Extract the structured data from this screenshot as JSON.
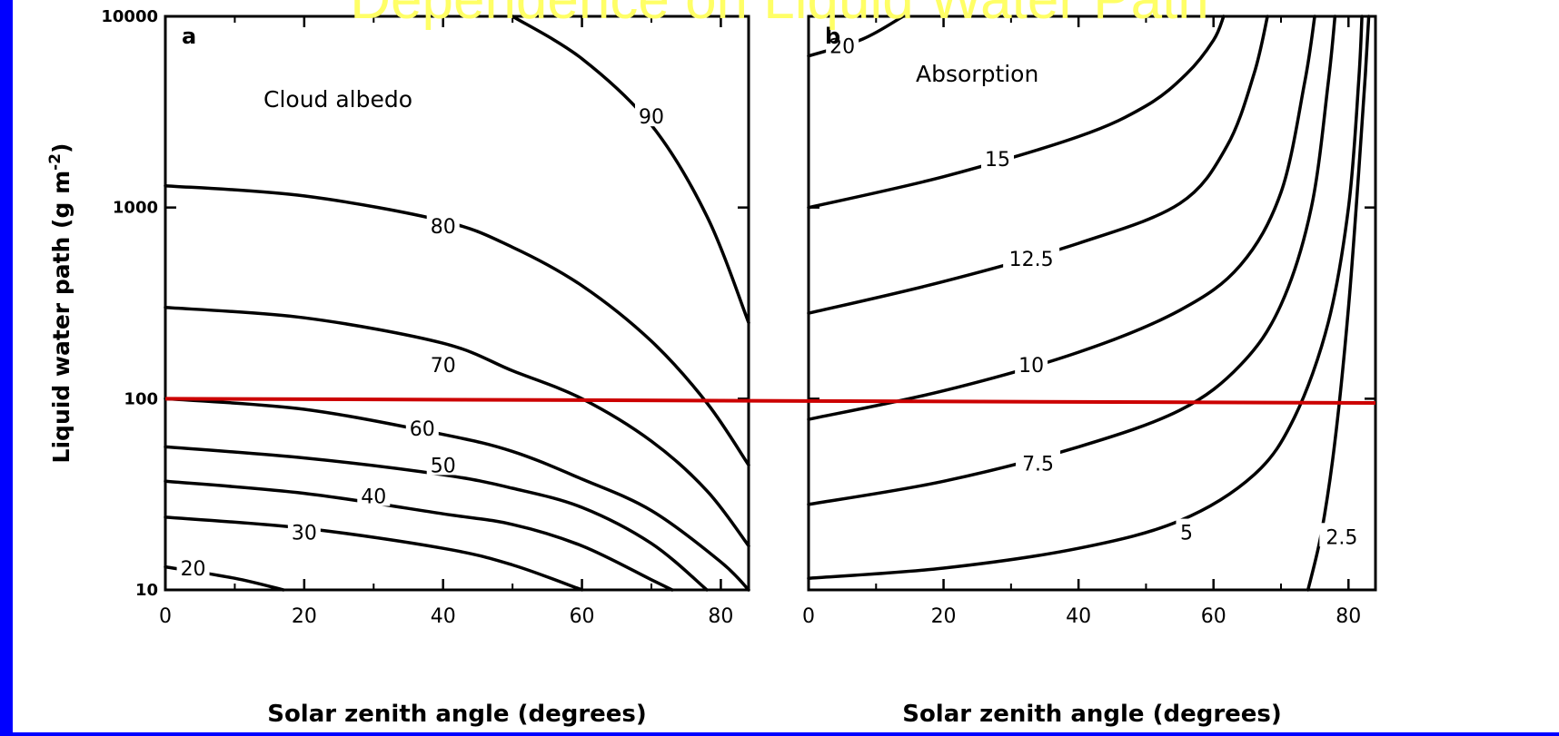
{
  "slide": {
    "title": "Dependence on Liquid Water Path",
    "background_color": "#0000ff",
    "title_color": "#ffff66",
    "highlight_line_color": "#cc0000"
  },
  "chart_data": [
    {
      "type": "contour",
      "panel_letter": "a",
      "title": "Cloud albedo",
      "xlabel": "Solar zenith angle (degrees)",
      "ylabel": "Liquid water path (g m^-2)",
      "x_scale": "linear",
      "y_scale": "log",
      "xlim": [
        0,
        84
      ],
      "ylim": [
        10,
        10000
      ],
      "x_ticks": [
        "0",
        "20",
        "40",
        "60",
        "80"
      ],
      "y_ticks": [
        "10",
        "100",
        "1000",
        "10000"
      ],
      "reference_line": {
        "y_start": 100,
        "y_end": 100
      },
      "contours": [
        {
          "label": "90",
          "x": [
            50,
            60,
            70,
            78,
            84
          ],
          "y": [
            10000,
            6000,
            2700,
            900,
            250
          ],
          "label_at": [
            70,
            3000
          ]
        },
        {
          "label": "80",
          "x": [
            0,
            20,
            40,
            50,
            60,
            70,
            78,
            84
          ],
          "y": [
            1300,
            1150,
            850,
            620,
            390,
            200,
            95,
            45
          ],
          "label_at": [
            40,
            800
          ]
        },
        {
          "label": "70",
          "x": [
            0,
            20,
            40,
            50,
            60,
            70,
            78,
            84
          ],
          "y": [
            300,
            265,
            195,
            140,
            100,
            60,
            33,
            17
          ],
          "label_at": [
            40,
            150
          ]
        },
        {
          "label": "60",
          "x": [
            0,
            20,
            40,
            50,
            60,
            70,
            80,
            84
          ],
          "y": [
            100,
            88,
            65,
            53,
            38,
            26,
            14,
            10
          ],
          "label_at": [
            37,
            70
          ]
        },
        {
          "label": "50",
          "x": [
            0,
            20,
            40,
            50,
            60,
            70,
            78
          ],
          "y": [
            56,
            49,
            40,
            34,
            27,
            17.5,
            10
          ],
          "label_at": [
            40,
            45
          ]
        },
        {
          "label": "40",
          "x": [
            0,
            20,
            40,
            50,
            60,
            70,
            73
          ],
          "y": [
            37,
            32,
            25,
            22,
            17,
            11.3,
            10
          ],
          "label_at": [
            30,
            31
          ]
        },
        {
          "label": "30",
          "x": [
            0,
            20,
            40,
            50,
            60
          ],
          "y": [
            24,
            21,
            16.5,
            13.5,
            10
          ],
          "label_at": [
            20,
            20
          ]
        },
        {
          "label": "20",
          "x": [
            0,
            10,
            17
          ],
          "y": [
            13.2,
            11.5,
            10
          ],
          "label_at": [
            4,
            13
          ]
        }
      ]
    },
    {
      "type": "contour",
      "panel_letter": "b",
      "title": "Absorption",
      "xlabel": "Solar zenith angle (degrees)",
      "ylabel": "",
      "x_scale": "linear",
      "y_scale": "log",
      "xlim": [
        0,
        84
      ],
      "ylim": [
        10,
        10000
      ],
      "x_ticks": [
        "0",
        "20",
        "40",
        "60",
        "80"
      ],
      "y_ticks": [],
      "reference_line": {
        "y_start": 100,
        "y_end": 95
      },
      "contours": [
        {
          "label": "20",
          "x": [
            0,
            8,
            14
          ],
          "y": [
            6200,
            7600,
            10000
          ],
          "label_at": [
            5,
            7000
          ]
        },
        {
          "label": "15",
          "x": [
            0,
            20,
            40,
            50,
            56,
            60,
            61.5
          ],
          "y": [
            1000,
            1450,
            2350,
            3400,
            5000,
            7500,
            10000
          ],
          "label_at": [
            28,
            1800
          ]
        },
        {
          "label": "12.5",
          "x": [
            0,
            20,
            40,
            55,
            62,
            66,
            68
          ],
          "y": [
            280,
            410,
            650,
            1050,
            2100,
            5000,
            10000
          ],
          "label_at": [
            33,
            540
          ]
        },
        {
          "label": "10",
          "x": [
            0,
            20,
            40,
            55,
            64,
            70,
            73.5,
            75
          ],
          "y": [
            78,
            110,
            175,
            290,
            500,
            1200,
            4500,
            10000
          ],
          "label_at": [
            33,
            150
          ]
        },
        {
          "label": "7.5",
          "x": [
            0,
            20,
            40,
            55,
            64,
            70,
            74.5,
            77,
            78
          ],
          "y": [
            28,
            37,
            56,
            87,
            150,
            310,
            1000,
            4500,
            10000
          ],
          "label_at": [
            34,
            46
          ]
        },
        {
          "label": "5",
          "x": [
            0,
            20,
            40,
            55,
            66,
            72,
            77,
            80,
            81.5,
            82
          ],
          "y": [
            11.5,
            13,
            16.5,
            23,
            40,
            80,
            250,
            1000,
            4500,
            10000
          ],
          "label_at": [
            56,
            20
          ]
        },
        {
          "label": "2.5",
          "x": [
            74,
            76,
            78,
            80,
            81.5,
            82.5,
            83
          ],
          "y": [
            10,
            20,
            60,
            300,
            1500,
            5000,
            10000
          ],
          "label_at": [
            79,
            19
          ]
        }
      ]
    }
  ]
}
